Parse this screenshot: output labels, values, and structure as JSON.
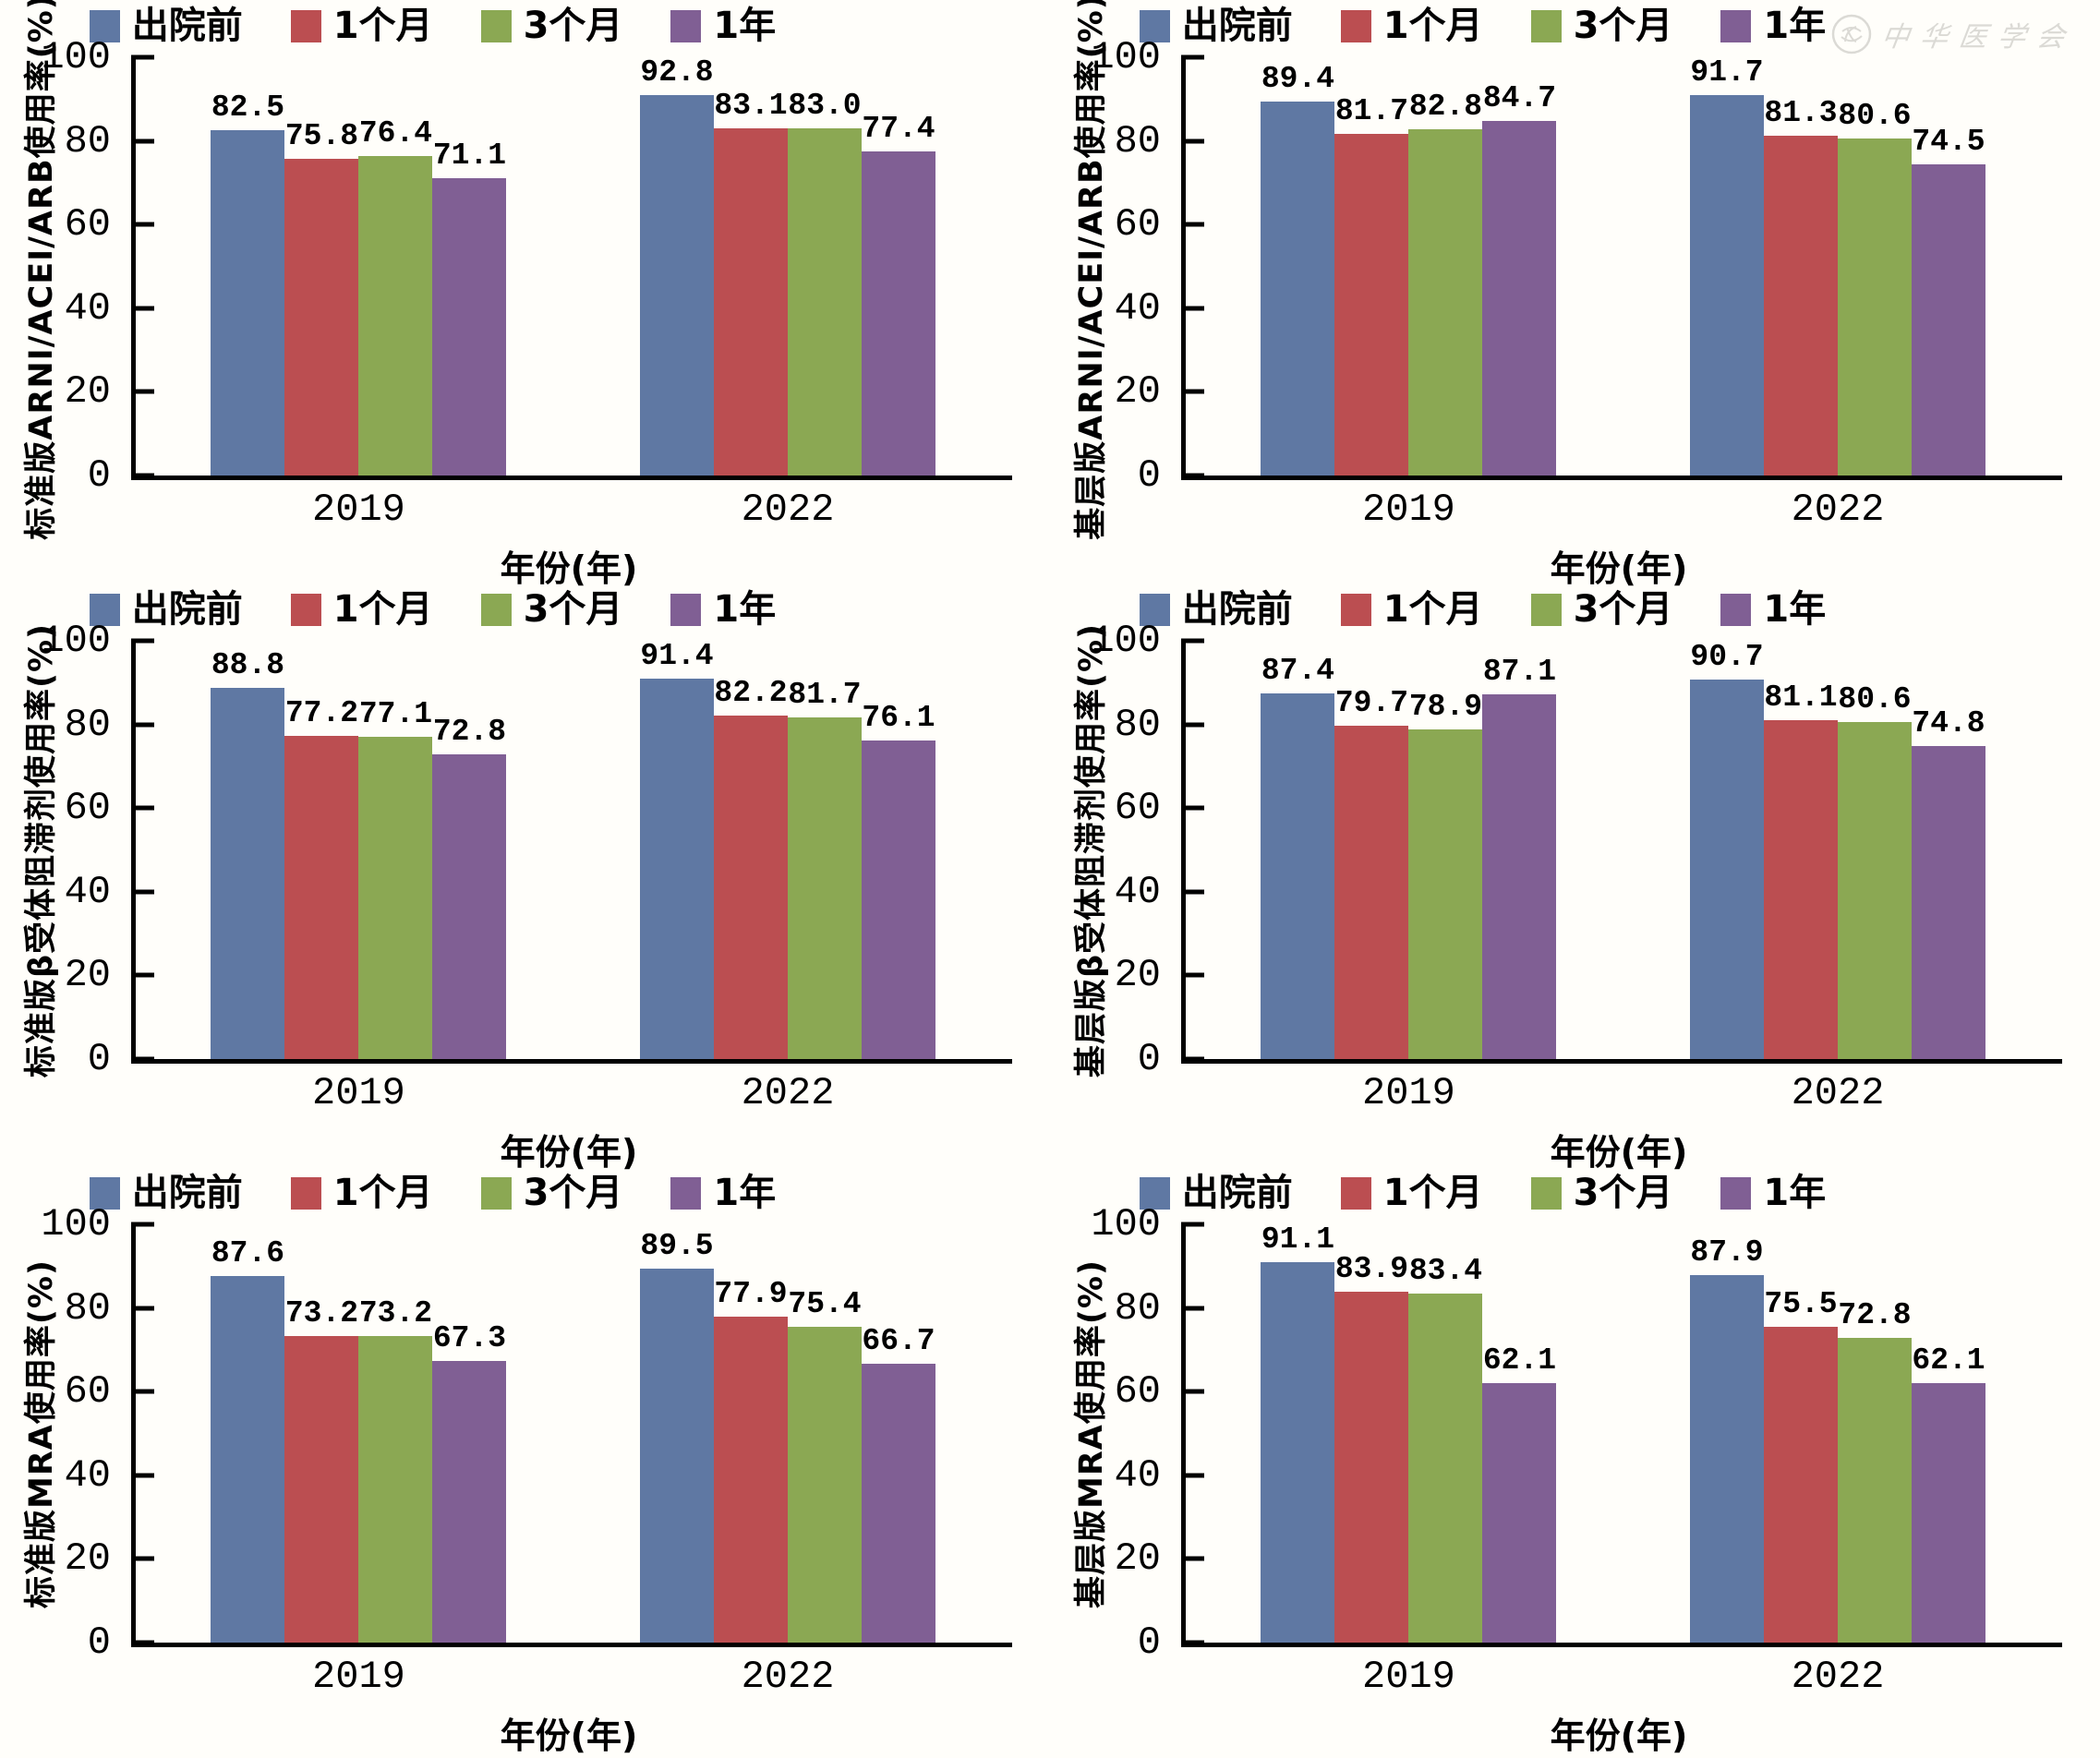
{
  "watermark": {
    "text": "中华医学会",
    "icon": "seal-icon",
    "color": "#b9b7b2"
  },
  "colors": {
    "bar_blue": "#5F78A3",
    "bar_red": "#BB4E51",
    "bar_green": "#8BA853",
    "bar_purple": "#805F94",
    "axis": "#000000",
    "background": "#fffefa"
  },
  "legend_labels": [
    "出院前",
    "1个月",
    "3个月",
    "1年"
  ],
  "chart_data": [
    {
      "type": "bar",
      "title": "",
      "ylabel": "标准版ARNI/ACEI/ARB使用率(%)",
      "xlabel": "年份(年)",
      "categories": [
        "2019",
        "2022"
      ],
      "ylim": [
        0,
        100
      ],
      "yticks": [
        0,
        20,
        40,
        60,
        80,
        100
      ],
      "grid": false,
      "legend_position": "top",
      "series": [
        {
          "name": "出院前",
          "color": "#5F78A3",
          "values": [
            82.5,
            92.8
          ]
        },
        {
          "name": "1个月",
          "color": "#BB4E51",
          "values": [
            75.8,
            83.1
          ]
        },
        {
          "name": "3个月",
          "color": "#8BA853",
          "values": [
            76.4,
            83.0
          ]
        },
        {
          "name": "1年",
          "color": "#805F94",
          "values": [
            71.1,
            77.4
          ]
        }
      ]
    },
    {
      "type": "bar",
      "title": "",
      "ylabel": "基层版ARNI/ACEI/ARB使用率(%)",
      "xlabel": "年份(年)",
      "categories": [
        "2019",
        "2022"
      ],
      "ylim": [
        0,
        100
      ],
      "yticks": [
        0,
        20,
        40,
        60,
        80,
        100
      ],
      "grid": false,
      "legend_position": "top",
      "series": [
        {
          "name": "出院前",
          "color": "#5F78A3",
          "values": [
            89.4,
            91.7
          ]
        },
        {
          "name": "1个月",
          "color": "#BB4E51",
          "values": [
            81.7,
            81.3
          ]
        },
        {
          "name": "3个月",
          "color": "#8BA853",
          "values": [
            82.8,
            80.6
          ]
        },
        {
          "name": "1年",
          "color": "#805F94",
          "values": [
            84.7,
            74.5
          ]
        }
      ]
    },
    {
      "type": "bar",
      "title": "",
      "ylabel": "标准版β受体阻滞剂使用率(%)",
      "xlabel": "年份(年)",
      "categories": [
        "2019",
        "2022"
      ],
      "ylim": [
        0,
        100
      ],
      "yticks": [
        0,
        20,
        40,
        60,
        80,
        100
      ],
      "grid": false,
      "legend_position": "top",
      "series": [
        {
          "name": "出院前",
          "color": "#5F78A3",
          "values": [
            88.8,
            91.4
          ]
        },
        {
          "name": "1个月",
          "color": "#BB4E51",
          "values": [
            77.2,
            82.2
          ]
        },
        {
          "name": "3个月",
          "color": "#8BA853",
          "values": [
            77.1,
            81.7
          ]
        },
        {
          "name": "1年",
          "color": "#805F94",
          "values": [
            72.8,
            76.1
          ]
        }
      ]
    },
    {
      "type": "bar",
      "title": "",
      "ylabel": "基层版β受体阻滞剂使用率(%)",
      "xlabel": "年份(年)",
      "categories": [
        "2019",
        "2022"
      ],
      "ylim": [
        0,
        100
      ],
      "yticks": [
        0,
        20,
        40,
        60,
        80,
        100
      ],
      "grid": false,
      "legend_position": "top",
      "series": [
        {
          "name": "出院前",
          "color": "#5F78A3",
          "values": [
            87.4,
            90.7
          ]
        },
        {
          "name": "1个月",
          "color": "#BB4E51",
          "values": [
            79.7,
            81.1
          ]
        },
        {
          "name": "3个月",
          "color": "#8BA853",
          "values": [
            78.9,
            80.6
          ]
        },
        {
          "name": "1年",
          "color": "#805F94",
          "values": [
            87.1,
            74.8
          ]
        }
      ]
    },
    {
      "type": "bar",
      "title": "",
      "ylabel": "标准版MRA使用率(%)",
      "xlabel": "年份(年)",
      "categories": [
        "2019",
        "2022"
      ],
      "ylim": [
        0,
        100
      ],
      "yticks": [
        0,
        20,
        40,
        60,
        80,
        100
      ],
      "grid": false,
      "legend_position": "top",
      "series": [
        {
          "name": "出院前",
          "color": "#5F78A3",
          "values": [
            87.6,
            89.5
          ]
        },
        {
          "name": "1个月",
          "color": "#BB4E51",
          "values": [
            73.2,
            77.9
          ]
        },
        {
          "name": "3个月",
          "color": "#8BA853",
          "values": [
            73.2,
            75.4
          ]
        },
        {
          "name": "1年",
          "color": "#805F94",
          "values": [
            67.3,
            66.7
          ]
        }
      ]
    },
    {
      "type": "bar",
      "title": "",
      "ylabel": "基层版MRA使用率(%)",
      "xlabel": "年份(年)",
      "categories": [
        "2019",
        "2022"
      ],
      "ylim": [
        0,
        100
      ],
      "yticks": [
        0,
        20,
        40,
        60,
        80,
        100
      ],
      "grid": false,
      "legend_position": "top",
      "series": [
        {
          "name": "出院前",
          "color": "#5F78A3",
          "values": [
            91.1,
            87.9
          ]
        },
        {
          "name": "1个月",
          "color": "#BB4E51",
          "values": [
            83.9,
            75.5
          ]
        },
        {
          "name": "3个月",
          "color": "#8BA853",
          "values": [
            83.4,
            72.8
          ]
        },
        {
          "name": "1年",
          "color": "#805F94",
          "values": [
            62.1,
            62.1
          ]
        }
      ]
    }
  ]
}
